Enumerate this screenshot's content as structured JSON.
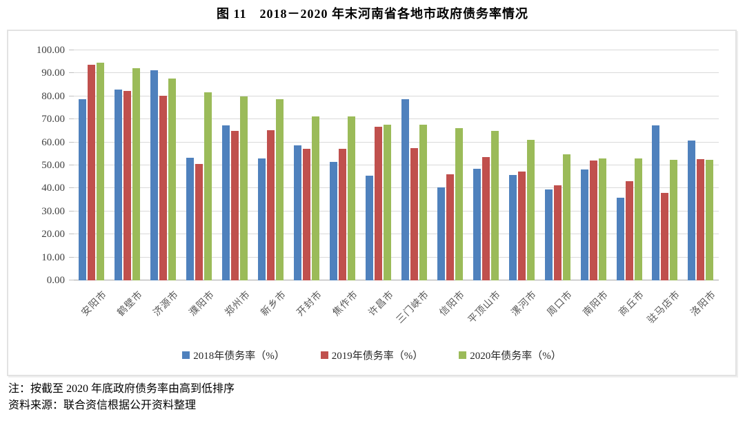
{
  "figure": {
    "title": "图 11　2018－2020 年末河南省各地市政府债务率情况",
    "notes": [
      "注：按截至 2020 年底政府债务率由高到低排序",
      "资料来源：联合资信根据公开资料整理"
    ]
  },
  "chart_data": {
    "type": "bar",
    "title": "图 11　2018－2020 年末河南省各地市政府债务率情况",
    "categories": [
      "安阳市",
      "鹤壁市",
      "济源市",
      "濮阳市",
      "郑州市",
      "新乡市",
      "开封市",
      "焦作市",
      "许昌市",
      "三门峡市",
      "信阳市",
      "平顶山市",
      "漯河市",
      "周口市",
      "南阳市",
      "商丘市",
      "驻马店市",
      "洛阳市"
    ],
    "series": [
      {
        "name": "2018年债务率（%）",
        "color": "#4F81BD",
        "values": [
          78.8,
          83.0,
          91.2,
          53.2,
          67.5,
          53.1,
          58.7,
          51.6,
          45.6,
          78.7,
          40.4,
          48.4,
          45.9,
          39.5,
          48.2,
          35.8,
          67.4,
          60.7
        ]
      },
      {
        "name": "2019年债务率（%）",
        "color": "#C0504D",
        "values": [
          93.6,
          82.4,
          80.3,
          50.6,
          64.9,
          65.2,
          57.3,
          57.1,
          66.7,
          57.4,
          46.1,
          53.6,
          47.4,
          41.4,
          52.0,
          43.2,
          38.0,
          52.6
        ]
      },
      {
        "name": "2020年债务率（%）",
        "color": "#9BBB59",
        "values": [
          94.6,
          92.3,
          87.8,
          81.7,
          79.8,
          78.7,
          71.4,
          71.2,
          67.7,
          67.6,
          66.1,
          65.0,
          61.2,
          54.9,
          53.0,
          52.9,
          52.4,
          52.4
        ]
      }
    ],
    "ylim": [
      0,
      100
    ],
    "yticks": [
      {
        "value": 100,
        "label": "100.00"
      },
      {
        "value": 90,
        "label": "90.00"
      },
      {
        "value": 80,
        "label": "80.00"
      },
      {
        "value": 70,
        "label": "70.00"
      },
      {
        "value": 60,
        "label": "60.00"
      },
      {
        "value": 50,
        "label": "50.00"
      },
      {
        "value": 40,
        "label": "40.00"
      },
      {
        "value": 30,
        "label": "30.00"
      },
      {
        "value": 20,
        "label": "20.00"
      },
      {
        "value": 10,
        "label": "10.00"
      },
      {
        "value": 0,
        "label": "0.00"
      }
    ],
    "grid": true,
    "legend_position": "bottom"
  }
}
